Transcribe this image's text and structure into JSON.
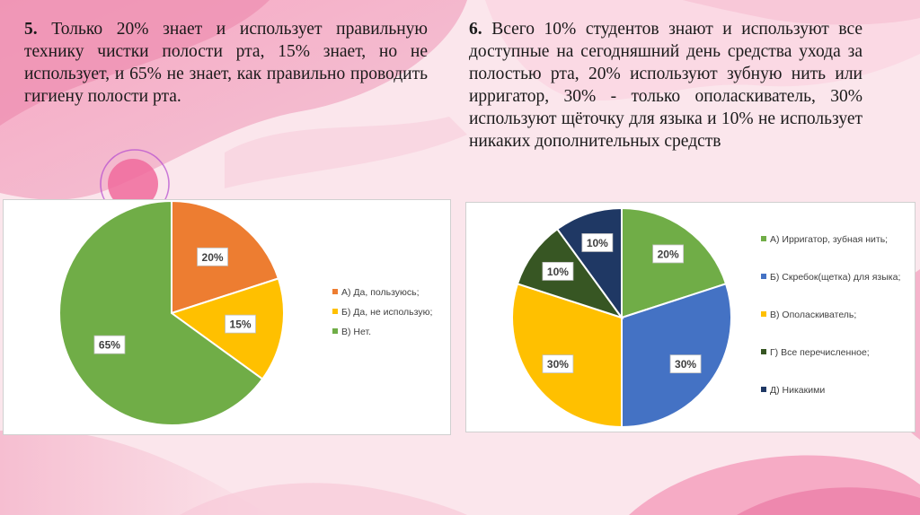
{
  "paragraphs": {
    "p5": {
      "num": "5.",
      "text": "Только 20% знает и использует правильную технику чистки полости рта, 15% знает, но не использует, и 65% не знает, как правильно проводить гигиену полости рта."
    },
    "p6": {
      "num": "6.",
      "text": "Всего 10% студентов знают и используют все доступные на сегодняшний день средства ухода за полостью рта, 20% используют зубную нить или ирригатор, 30% - только ополаскиватель, 30% используют щёточку для языка и 10% не использует никаких дополнительных средств"
    }
  },
  "chart_data": [
    {
      "type": "pie",
      "categories": [
        "А) Да, пользуюсь;",
        "Б) Да, не использую;",
        "В) Нет."
      ],
      "values": [
        20,
        15,
        65
      ],
      "labels": [
        "20%",
        "15%",
        "65%"
      ],
      "colors": [
        "#ed7d31",
        "#ffc000",
        "#70ad47"
      ],
      "legend": "right"
    },
    {
      "type": "pie",
      "categories": [
        "А) Ирригатор, зубная нить;",
        "Б) Скребок(щетка) для языка;",
        "В) Ополаскиватель;",
        "Г) Все перечисленное;",
        "Д) Никакими"
      ],
      "values": [
        20,
        30,
        30,
        10,
        10
      ],
      "labels": [
        "20%",
        "30%",
        "30%",
        "10%",
        "10%"
      ],
      "colors": [
        "#70ad47",
        "#4472c4",
        "#ffc000",
        "#375623",
        "#1f3864"
      ],
      "legend": "right"
    }
  ]
}
